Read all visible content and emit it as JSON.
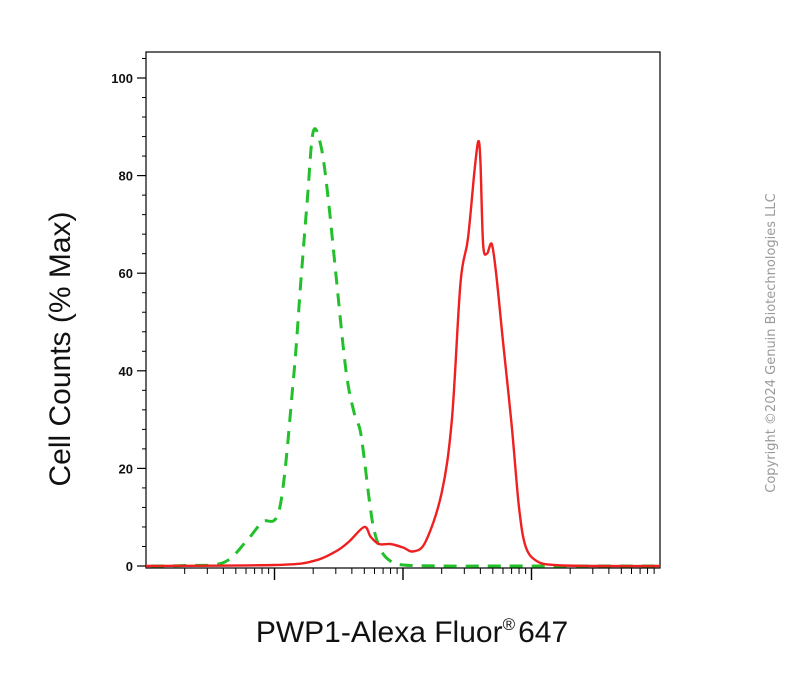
{
  "chart_data": {
    "type": "line",
    "xlabel": "PWP1-Alexa Fluor",
    "xlabel_mark": "®",
    "xlabel_suffix": "647",
    "ylabel": "Cell Counts (% Max)",
    "ylim": [
      0,
      105
    ],
    "xscale": "log",
    "xlim": [
      10,
      100000
    ],
    "yticks": [
      "0",
      "20",
      "40",
      "60",
      "80",
      "100"
    ],
    "ytick_values": [
      0,
      20,
      40,
      60,
      80,
      100
    ],
    "xmajor_ticks": [
      100,
      1000,
      10000
    ],
    "grid": false,
    "legend": "none",
    "series": [
      {
        "color": "#22c02a",
        "style": "dashed",
        "x": [
          11,
          20,
          40,
          60,
          80,
          110,
          140,
          160,
          180,
          200,
          230,
          260,
          300,
          360,
          420,
          470,
          550,
          600,
          680,
          800,
          1000,
          2000,
          5000,
          10000,
          100000
        ],
        "y": [
          0,
          0.1,
          0.7,
          5,
          9,
          12,
          38,
          58,
          75,
          89,
          86,
          76,
          60,
          40,
          31,
          27,
          13,
          7,
          3,
          1,
          0.2,
          0,
          0,
          0,
          0
        ]
      },
      {
        "color": "#ee2020",
        "style": "solid",
        "x": [
          10,
          100,
          200,
          300,
          380,
          500,
          560,
          650,
          800,
          1000,
          1200,
          1500,
          2000,
          2400,
          2800,
          3200,
          3600,
          3850,
          4000,
          4200,
          4500,
          4900,
          5300,
          6000,
          7000,
          8000,
          9000,
          11000,
          15000,
          30000,
          100000
        ],
        "y": [
          0,
          0.2,
          1,
          3,
          5,
          8,
          6,
          4.5,
          4.5,
          3.8,
          3,
          5,
          15,
          30,
          58,
          67,
          81,
          87,
          83,
          66,
          64,
          66,
          60,
          46,
          29,
          12,
          4,
          1,
          0.2,
          0,
          0
        ]
      }
    ]
  },
  "watermark": "Copyright ©2024 Genuin Biotechnologies LLC"
}
